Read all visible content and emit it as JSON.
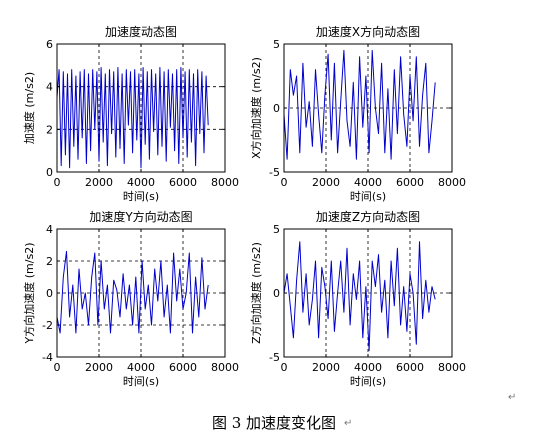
{
  "caption": "图 3  加速度变化图",
  "paragraph_mark": "↵",
  "colors": {
    "series": "#0000cc",
    "axis": "#000000",
    "grid": "#000000",
    "background": "#ffffff"
  },
  "chart_data": [
    {
      "type": "line",
      "title": "加速度动态图",
      "xlabel": "时间(s)",
      "ylabel": "加速度 (m/s2)",
      "xlim": [
        0,
        8000
      ],
      "ylim": [
        0,
        6
      ],
      "xticks": [
        0,
        2000,
        4000,
        6000,
        8000
      ],
      "yticks": [
        0,
        2,
        4,
        6
      ],
      "grid": true,
      "grid_style": "dashed",
      "series": [
        {
          "x": [
            0,
            100,
            200,
            300,
            400,
            500,
            600,
            700,
            800,
            900,
            1000,
            1100,
            1200,
            1300,
            1400,
            1500,
            1600,
            1700,
            1800,
            1900,
            2000,
            2100,
            2200,
            2300,
            2400,
            2500,
            2600,
            2700,
            2800,
            2900,
            3000,
            3100,
            3200,
            3300,
            3400,
            3500,
            3600,
            3700,
            3800,
            3900,
            4000,
            4100,
            4200,
            4300,
            4400,
            4500,
            4600,
            4700,
            4800,
            4900,
            5000,
            5100,
            5200,
            5300,
            5400,
            5500,
            5600,
            5700,
            5800,
            5900,
            6000,
            6100,
            6200,
            6300,
            6400,
            6500,
            6600,
            6700,
            6800,
            6900,
            7000,
            7100,
            7200
          ],
          "y": [
            3.5,
            4.8,
            0.3,
            4.7,
            0.8,
            4.6,
            0.2,
            4.8,
            1.2,
            4.5,
            0.6,
            4.7,
            1.6,
            4.8,
            0.4,
            4.6,
            1.0,
            4.8,
            2.0,
            4.7,
            0.5,
            4.9,
            1.4,
            4.6,
            0.3,
            4.8,
            1.8,
            4.7,
            0.7,
            4.9,
            1.1,
            4.6,
            0.4,
            4.8,
            2.2,
            4.7,
            0.9,
            4.8,
            1.5,
            4.6,
            0.2,
            4.9,
            1.3,
            4.7,
            0.6,
            4.8,
            1.9,
            4.6,
            0.8,
            4.9,
            1.2,
            4.7,
            0.5,
            4.8,
            2.1,
            4.6,
            1.0,
            4.8,
            0.4,
            4.9,
            1.6,
            4.7,
            0.7,
            4.8,
            1.4,
            4.6,
            0.3,
            4.8,
            1.8,
            4.7,
            0.9,
            4.5,
            2.2
          ]
        }
      ]
    },
    {
      "type": "line",
      "title": "加速度X方向动态图",
      "xlabel": "时间(s)",
      "ylabel": "X方向加速度 (m/s2)",
      "xlim": [
        0,
        8000
      ],
      "ylim": [
        -5,
        5
      ],
      "xticks": [
        0,
        2000,
        4000,
        6000,
        8000
      ],
      "yticks": [
        -5,
        0,
        5
      ],
      "grid": true,
      "grid_style": "dashed",
      "series": [
        {
          "x": [
            0,
            150,
            300,
            450,
            600,
            750,
            900,
            1050,
            1200,
            1350,
            1500,
            1650,
            1800,
            1950,
            2100,
            2250,
            2400,
            2550,
            2700,
            2850,
            3000,
            3150,
            3300,
            3450,
            3600,
            3750,
            3900,
            4050,
            4200,
            4350,
            4500,
            4650,
            4800,
            4950,
            5100,
            5250,
            5400,
            5550,
            5700,
            5850,
            6000,
            6150,
            6300,
            6450,
            6600,
            6750,
            6900,
            7050,
            7200
          ],
          "y": [
            -0.5,
            -4.0,
            3.0,
            1.0,
            2.5,
            -3.5,
            3.5,
            -1.5,
            0.5,
            -3.0,
            3.0,
            -0.5,
            -3.5,
            1.0,
            4.2,
            -2.5,
            3.5,
            -3.5,
            0.5,
            4.5,
            -1.0,
            -3.0,
            2.0,
            -4.0,
            4.0,
            -1.5,
            2.5,
            -3.5,
            4.5,
            0.0,
            -2.0,
            3.5,
            -3.5,
            1.5,
            -4.0,
            3.0,
            -2.0,
            4.0,
            -0.5,
            -3.0,
            2.5,
            -1.0,
            4.0,
            -3.0,
            1.0,
            3.5,
            -3.5,
            -1.0,
            2.0
          ]
        }
      ]
    },
    {
      "type": "line",
      "title": "加速度Y方向动态图",
      "xlabel": "时间(s)",
      "ylabel": "Y方向加速度 (m/s2)",
      "xlim": [
        0,
        8000
      ],
      "ylim": [
        -4,
        4
      ],
      "xticks": [
        0,
        2000,
        4000,
        6000,
        8000
      ],
      "yticks": [
        -4,
        -2,
        0,
        2,
        4
      ],
      "grid": true,
      "grid_style": "dashed",
      "series": [
        {
          "x": [
            0,
            150,
            300,
            450,
            600,
            750,
            900,
            1050,
            1200,
            1350,
            1500,
            1650,
            1800,
            1950,
            2100,
            2250,
            2400,
            2550,
            2700,
            2850,
            3000,
            3150,
            3300,
            3450,
            3600,
            3750,
            3900,
            4050,
            4200,
            4350,
            4500,
            4650,
            4800,
            4950,
            5100,
            5250,
            5400,
            5550,
            5700,
            5850,
            6000,
            6150,
            6300,
            6450,
            6600,
            6750,
            6900,
            7050,
            7200
          ],
          "y": [
            -1.5,
            -2.5,
            1.0,
            2.6,
            -1.5,
            0.5,
            -2.5,
            1.5,
            -1.0,
            0.0,
            -2.0,
            1.0,
            2.5,
            -2.0,
            2.0,
            -1.0,
            0.5,
            -2.5,
            0.8,
            0.2,
            -1.5,
            1.2,
            -1.0,
            0.5,
            -2.0,
            1.0,
            -2.5,
            2.0,
            -1.0,
            0.5,
            -2.0,
            1.5,
            -0.5,
            2.0,
            -1.5,
            0.5,
            -2.5,
            2.5,
            -0.5,
            1.5,
            -1.0,
            0.0,
            2.5,
            -2.5,
            1.0,
            -1.5,
            2.2,
            -1.0,
            0.5
          ]
        }
      ]
    },
    {
      "type": "line",
      "title": "加速度Z方向动态图",
      "xlabel": "时间(s)",
      "ylabel": "Z方向加速度 (m/s2)",
      "xlim": [
        0,
        8000
      ],
      "ylim": [
        -5,
        5
      ],
      "xticks": [
        0,
        2000,
        4000,
        6000,
        8000
      ],
      "yticks": [
        -5,
        0,
        5
      ],
      "grid": true,
      "grid_style": "dashed",
      "series": [
        {
          "x": [
            0,
            150,
            300,
            450,
            600,
            750,
            900,
            1050,
            1200,
            1350,
            1500,
            1650,
            1800,
            1950,
            2100,
            2250,
            2400,
            2550,
            2700,
            2850,
            3000,
            3150,
            3300,
            3450,
            3600,
            3750,
            3900,
            4050,
            4200,
            4350,
            4500,
            4650,
            4800,
            4950,
            5100,
            5250,
            5400,
            5550,
            5700,
            5850,
            6000,
            6150,
            6300,
            6450,
            6600,
            6750,
            6900,
            7050,
            7200
          ],
          "y": [
            0.0,
            1.5,
            -1.0,
            -3.5,
            1.0,
            4.0,
            -1.5,
            1.5,
            -2.5,
            -0.5,
            2.5,
            -3.5,
            2.0,
            0.5,
            -2.0,
            2.5,
            -3.0,
            0.0,
            2.5,
            -1.5,
            3.5,
            -2.5,
            1.5,
            -0.5,
            2.5,
            -3.5,
            0.5,
            -4.5,
            2.5,
            0.5,
            3.0,
            -1.5,
            1.0,
            -3.5,
            2.5,
            -1.0,
            3.5,
            -2.5,
            0.5,
            -3.0,
            1.5,
            0.0,
            -4.0,
            4.0,
            -2.0,
            1.0,
            -1.5,
            0.5,
            -0.5
          ]
        }
      ]
    }
  ]
}
